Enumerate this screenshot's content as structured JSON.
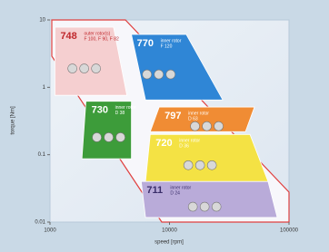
{
  "chart_data": {
    "type": "region",
    "x_label": "speed [rpm]",
    "y_label": "torque [Nm]",
    "x_log": true,
    "y_log": true,
    "xlim": [
      1000,
      100000
    ],
    "ylim": [
      0.01,
      10
    ],
    "xticks": [
      1000,
      10000,
      100000
    ],
    "yticks": [
      0.01,
      0.1,
      1,
      10
    ],
    "series": [
      {
        "name": "748",
        "description": [
          "outer rotor(s)",
          "F 100, F 90, F 82"
        ],
        "color": "#f5cfd0",
        "text_color": "#c0282d",
        "x": [
          1100,
          3400,
          4400,
          1100
        ],
        "y": [
          7.8,
          7.8,
          0.76,
          0.76
        ]
      },
      {
        "name": "770",
        "description": [
          "inner rotor",
          "F 120"
        ],
        "color": "#2f86d6",
        "text_color": "#ffffff",
        "x": [
          4800,
          13800,
          27900,
          6300
        ],
        "y": [
          6.1,
          6.1,
          0.65,
          0.65
        ]
      },
      {
        "name": "730",
        "description": [
          "inner rotor",
          "D 38"
        ],
        "color": "#3d9c3a",
        "text_color": "#ffffff",
        "x": [
          2000,
          4800,
          4800,
          1850
        ],
        "y": [
          0.62,
          0.62,
          0.087,
          0.087
        ]
      },
      {
        "name": "797",
        "description": [
          "inner rotor",
          "D 63"
        ],
        "color": "#f08c34",
        "text_color": "#ffffff",
        "x": [
          8200,
          51400,
          43200,
          6900
        ],
        "y": [
          0.51,
          0.51,
          0.22,
          0.22
        ]
      },
      {
        "name": "720",
        "description": [
          "inner rotor",
          "D 36"
        ],
        "color": "#f4e244",
        "text_color": "#ffffff",
        "x": [
          6900,
          47100,
          66800,
          6300
        ],
        "y": [
          0.2,
          0.2,
          0.04,
          0.04
        ]
      },
      {
        "name": "711",
        "description": [
          "inner rotor",
          "D 24"
        ],
        "color": "#b9abd9",
        "text_color": "#3a2e6a",
        "x": [
          5800,
          66800,
          79700,
          6300
        ],
        "y": [
          0.04,
          0.04,
          0.0117,
          0.0117
        ]
      }
    ]
  }
}
